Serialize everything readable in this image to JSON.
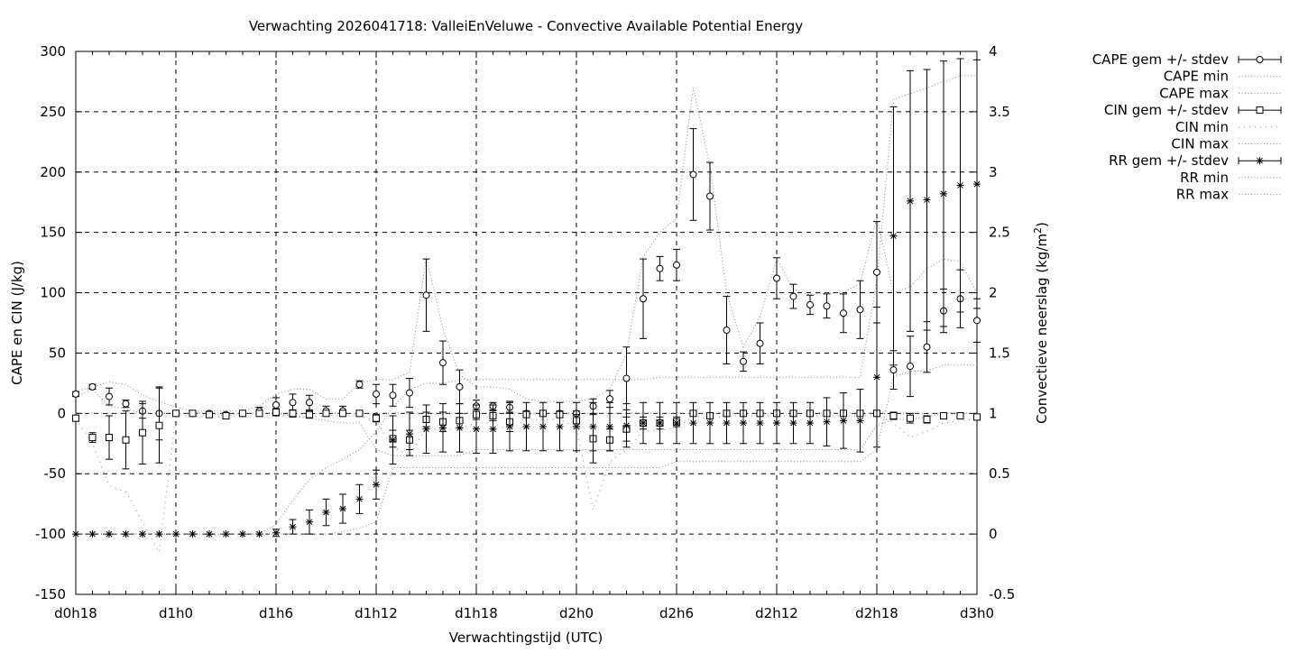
{
  "chart_data": {
    "type": "line",
    "title": "Verwachting 2026041718: ValleiEnVeluwe - Convective Available Potential Energy",
    "xlabel": "Verwachtingstijd (UTC)",
    "ylabel": "CAPE en CIN (J/kg)",
    "y2label_main": "Convectieve neerslag (kg/m",
    "y2label_sup": "2",
    "y2label_end": ")",
    "xlim": [
      0,
      54
    ],
    "ylim": [
      -150,
      300
    ],
    "y2lim": [
      -0.5,
      4
    ],
    "grid": true,
    "legend_position": "outside-top-right",
    "x_ticks": [
      {
        "x": 0,
        "label": "d0h18"
      },
      {
        "x": 6,
        "label": "d1h0"
      },
      {
        "x": 12,
        "label": "d1h6"
      },
      {
        "x": 18,
        "label": "d1h12"
      },
      {
        "x": 24,
        "label": "d1h18"
      },
      {
        "x": 30,
        "label": "d2h0"
      },
      {
        "x": 36,
        "label": "d2h6"
      },
      {
        "x": 42,
        "label": "d2h12"
      },
      {
        "x": 48,
        "label": "d2h18"
      },
      {
        "x": 54,
        "label": "d3h0"
      }
    ],
    "y_ticks": [
      300,
      250,
      200,
      150,
      100,
      50,
      0,
      -50,
      -100,
      -150
    ],
    "y_tick_labels": [
      "300",
      "250",
      "200",
      "150",
      "100",
      "50",
      "0",
      "-50",
      "-100",
      "-150"
    ],
    "y2_ticks": [
      4,
      3.5,
      3,
      2.5,
      2,
      1.5,
      1,
      0.5,
      0,
      -0.5
    ],
    "y2_tick_labels": [
      "4",
      "3.5",
      "3",
      "2.5",
      "2",
      "1.5",
      "1",
      "0.5",
      "0",
      "-0.5"
    ],
    "legend": [
      {
        "label": "CAPE gem +/- stdev",
        "style": "errbar",
        "marker": "circle"
      },
      {
        "label": "CAPE min",
        "style": "dotted"
      },
      {
        "label": "CAPE max",
        "style": "dotted"
      },
      {
        "label": "CIN gem +/- stdev",
        "style": "errbar",
        "marker": "square"
      },
      {
        "label": "CIN min",
        "style": "sparse"
      },
      {
        "label": "CIN max",
        "style": "dotted"
      },
      {
        "label": "RR gem +/- stdev",
        "style": "errbar",
        "marker": "star"
      },
      {
        "label": "RR min",
        "style": "dotted"
      },
      {
        "label": "RR max",
        "style": "dotted"
      }
    ],
    "series": [
      {
        "name": "CAPE gem +/- stdev",
        "axis": "y1",
        "marker": "circle",
        "x": [
          0,
          1,
          2,
          3,
          4,
          5,
          6,
          7,
          8,
          9,
          10,
          11,
          12,
          13,
          14,
          15,
          16,
          17,
          18,
          19,
          20,
          21,
          22,
          23,
          24,
          25,
          26,
          27,
          28,
          29,
          30,
          31,
          32,
          33,
          34,
          35,
          36,
          37,
          38,
          39,
          40,
          41,
          42,
          43,
          44,
          45,
          46,
          47,
          48,
          49,
          50,
          51,
          52,
          53,
          54
        ],
        "y": [
          16,
          22,
          14,
          8,
          2,
          0,
          0,
          0,
          0,
          -1,
          0,
          2,
          7,
          9,
          9,
          2,
          2,
          24,
          16,
          15,
          17,
          98,
          42,
          22,
          6,
          6,
          5,
          0,
          0,
          0,
          0,
          6,
          12,
          29,
          95,
          120,
          123,
          198,
          180,
          69,
          43,
          58,
          112,
          97,
          90,
          89,
          83,
          86,
          117,
          36,
          39,
          55,
          85,
          95,
          77
        ],
        "err": [
          2,
          2,
          7,
          3,
          6,
          22,
          1,
          1,
          1,
          1,
          1,
          3,
          6,
          7,
          6,
          4,
          4,
          3,
          8,
          9,
          12,
          30,
          18,
          14,
          5,
          3,
          5,
          2,
          2,
          2,
          2,
          6,
          7,
          26,
          33,
          10,
          13,
          38,
          28,
          28,
          8,
          17,
          17,
          10,
          8,
          10,
          16,
          24,
          42,
          16,
          25,
          21,
          18,
          24,
          18
        ]
      },
      {
        "name": "CIN gem +/- stdev",
        "axis": "y1",
        "marker": "square",
        "x": [
          0,
          1,
          2,
          3,
          4,
          5,
          6,
          7,
          8,
          9,
          10,
          11,
          12,
          13,
          14,
          15,
          16,
          17,
          18,
          19,
          20,
          21,
          22,
          23,
          24,
          25,
          26,
          27,
          28,
          29,
          30,
          31,
          32,
          33,
          34,
          35,
          36,
          37,
          38,
          39,
          40,
          41,
          42,
          43,
          44,
          45,
          46,
          47,
          48,
          49,
          50,
          51,
          52,
          53,
          54
        ],
        "y": [
          -4,
          -20,
          -20,
          -22,
          -16,
          -10,
          0,
          0,
          -1,
          -2,
          0,
          0,
          1,
          0,
          -1,
          0,
          0,
          0,
          -4,
          -21,
          -22,
          -5,
          -7,
          -6,
          -1,
          -2,
          -7,
          -1,
          0,
          -1,
          -6,
          -21,
          -22,
          -13,
          -8,
          -8,
          -7,
          0,
          -2,
          0,
          0,
          0,
          0,
          0,
          0,
          0,
          0,
          0,
          0,
          -2,
          -4,
          -5,
          -2,
          -2,
          -3
        ],
        "err": [
          1,
          4,
          18,
          24,
          26,
          31,
          1,
          1,
          1,
          1,
          1,
          1,
          3,
          3,
          3,
          2,
          2,
          1,
          3,
          7,
          8,
          6,
          8,
          6,
          4,
          4,
          8,
          2,
          2,
          2,
          5,
          20,
          9,
          10,
          5,
          5,
          4,
          1,
          2,
          1,
          1,
          1,
          1,
          1,
          1,
          1,
          1,
          1,
          1,
          3,
          4,
          3,
          1,
          1,
          1
        ]
      },
      {
        "name": "RR gem +/- stdev",
        "axis": "y2",
        "marker": "star",
        "x": [
          0,
          1,
          2,
          3,
          4,
          5,
          6,
          7,
          8,
          9,
          10,
          11,
          12,
          13,
          14,
          15,
          16,
          17,
          18,
          19,
          20,
          21,
          22,
          23,
          24,
          25,
          26,
          27,
          28,
          29,
          30,
          31,
          32,
          33,
          34,
          35,
          36,
          37,
          38,
          39,
          40,
          41,
          42,
          43,
          44,
          45,
          46,
          47,
          48,
          49,
          50,
          51,
          52,
          53,
          54
        ],
        "y": [
          0,
          0,
          0,
          0,
          0,
          0,
          0,
          0,
          0,
          0,
          0,
          0,
          0.01,
          0.06,
          0.1,
          0.18,
          0.21,
          0.29,
          0.41,
          0.78,
          0.83,
          0.87,
          0.88,
          0.88,
          0.87,
          0.87,
          0.89,
          0.89,
          0.89,
          0.89,
          0.89,
          0.89,
          0.89,
          0.9,
          0.92,
          0.92,
          0.92,
          0.92,
          0.92,
          0.92,
          0.92,
          0.92,
          0.92,
          0.92,
          0.92,
          0.93,
          0.94,
          0.94,
          1.3,
          2.47,
          2.76,
          2.77,
          2.82,
          2.89,
          2.9
        ],
        "err": [
          0,
          0,
          0,
          0,
          0,
          0,
          0,
          0,
          0,
          0,
          0,
          0,
          0.03,
          0.06,
          0.1,
          0.11,
          0.12,
          0.12,
          0.12,
          0.2,
          0.18,
          0.2,
          0.2,
          0.2,
          0.2,
          0.2,
          0.2,
          0.2,
          0.2,
          0.2,
          0.2,
          0.2,
          0.2,
          0.18,
          0.17,
          0.17,
          0.17,
          0.17,
          0.17,
          0.17,
          0.17,
          0.17,
          0.17,
          0.17,
          0.17,
          0.2,
          0.23,
          0.26,
          0.58,
          1.07,
          1.08,
          1.08,
          1.1,
          1.05,
          1.03
        ]
      },
      {
        "name": "CAPE max",
        "axis": "y1",
        "x": [
          0,
          1,
          2,
          3,
          4,
          5,
          6,
          7,
          8,
          9,
          10,
          11,
          12,
          13,
          14,
          15,
          16,
          17,
          18,
          19,
          20,
          21,
          22,
          23,
          24,
          25,
          26,
          27,
          28,
          29,
          30,
          31,
          32,
          33,
          34,
          35,
          36,
          37,
          38,
          39,
          40,
          41,
          42,
          43,
          44,
          45,
          46,
          47,
          48,
          49,
          50,
          51,
          52,
          53,
          54
        ],
        "y": [
          18,
          22,
          26,
          24,
          15,
          10,
          5,
          2,
          2,
          2,
          2,
          6,
          16,
          20,
          20,
          12,
          12,
          25,
          28,
          28,
          34,
          130,
          70,
          32,
          22,
          22,
          20,
          12,
          10,
          10,
          10,
          12,
          20,
          50,
          130,
          150,
          162,
          270,
          205,
          100,
          55,
          80,
          128,
          103,
          98,
          100,
          100,
          108,
          162,
          100,
          105,
          120,
          128,
          126,
          100
        ]
      },
      {
        "name": "CAPE min",
        "axis": "y1",
        "x": [
          0,
          1,
          2,
          3,
          4,
          5,
          6,
          7,
          8,
          9,
          10,
          11,
          12,
          13,
          14,
          15,
          16,
          17,
          18,
          19,
          20,
          21,
          22,
          23,
          24,
          25,
          26,
          27,
          28,
          29,
          30,
          31,
          32,
          33,
          34,
          35,
          36,
          37,
          38,
          39,
          40,
          41,
          42,
          43,
          44,
          45,
          46,
          47,
          48,
          49,
          50,
          51,
          52,
          53,
          54
        ],
        "y": [
          14,
          20,
          6,
          4,
          0,
          0,
          0,
          0,
          0,
          -2,
          0,
          0,
          0,
          -2,
          -4,
          -6,
          -8,
          -8,
          -30,
          -35,
          -35,
          -35,
          -35,
          -35,
          -30,
          -30,
          -30,
          -30,
          -30,
          -30,
          -30,
          -30,
          -30,
          -30,
          -30,
          -30,
          -30,
          -30,
          -30,
          -30,
          -30,
          -30,
          -30,
          -30,
          -30,
          -30,
          -30,
          -30,
          -10,
          -5,
          -5,
          -3,
          0,
          0,
          0
        ]
      },
      {
        "name": "CIN max",
        "axis": "y1",
        "x": [
          0,
          1,
          2,
          3,
          4,
          5,
          6,
          7,
          8,
          9,
          10,
          11,
          12,
          13,
          14,
          15,
          16,
          17,
          18,
          19,
          20,
          21,
          22,
          23,
          24,
          25,
          26,
          27,
          28,
          29,
          30,
          31,
          32,
          33,
          34,
          35,
          36,
          37,
          38,
          39,
          40,
          41,
          42,
          43,
          44,
          45,
          46,
          47,
          48,
          49,
          50,
          51,
          52,
          53,
          54
        ],
        "y": [
          0,
          0,
          0,
          0,
          0,
          0,
          0,
          0,
          0,
          0,
          0,
          0,
          0,
          0,
          0,
          0,
          0,
          0,
          0,
          0,
          0,
          0,
          0,
          0,
          0,
          0,
          0,
          0,
          0,
          0,
          0,
          0,
          0,
          0,
          0,
          0,
          0,
          0,
          0,
          0,
          0,
          0,
          0,
          0,
          0,
          0,
          0,
          0,
          0,
          0,
          0,
          0,
          0,
          0,
          0
        ]
      },
      {
        "name": "CIN min",
        "axis": "y1",
        "x": [
          0,
          1,
          2,
          3,
          4,
          5,
          6,
          7,
          8,
          9,
          10,
          11,
          12,
          13,
          14,
          15,
          16,
          17,
          18,
          19,
          20,
          21,
          22,
          23,
          24,
          25,
          26,
          27,
          28,
          29,
          30,
          31,
          32,
          33,
          34,
          35,
          36,
          37,
          38,
          39,
          40,
          41,
          42,
          43,
          44,
          45,
          46,
          47,
          48,
          49,
          50,
          51,
          52,
          53,
          54
        ],
        "y": [
          -5,
          -25,
          -60,
          -65,
          -90,
          -115,
          -2,
          -2,
          -3,
          -3,
          -2,
          -2,
          -2,
          -2,
          -3,
          -2,
          -2,
          -2,
          -6,
          -28,
          -35,
          -12,
          -14,
          -12,
          -8,
          -8,
          -14,
          -5,
          -5,
          -5,
          -12,
          -80,
          -40,
          -30,
          -15,
          -14,
          -12,
          -2,
          -5,
          -2,
          -2,
          -2,
          -2,
          -2,
          -2,
          -2,
          -2,
          -2,
          -2,
          -8,
          -20,
          -15,
          -8,
          -6,
          -5
        ]
      },
      {
        "name": "RR max",
        "axis": "y2",
        "x": [
          0,
          1,
          2,
          3,
          4,
          5,
          6,
          7,
          8,
          9,
          10,
          11,
          12,
          13,
          14,
          15,
          16,
          17,
          18,
          19,
          20,
          21,
          22,
          23,
          24,
          25,
          26,
          27,
          28,
          29,
          30,
          31,
          32,
          33,
          34,
          35,
          36,
          37,
          38,
          39,
          40,
          41,
          42,
          43,
          44,
          45,
          46,
          47,
          48,
          49,
          50,
          51,
          52,
          53,
          54
        ],
        "y": [
          0,
          0,
          0,
          0,
          0,
          0,
          0,
          0,
          0,
          0,
          0,
          0,
          0.08,
          0.28,
          0.45,
          0.55,
          0.62,
          0.7,
          0.85,
          1.05,
          1.2,
          1.25,
          1.25,
          1.28,
          1.28,
          1.28,
          1.28,
          1.28,
          1.28,
          1.28,
          1.28,
          1.28,
          1.28,
          1.28,
          1.28,
          1.3,
          1.3,
          1.3,
          1.3,
          1.3,
          1.3,
          1.3,
          1.3,
          1.3,
          1.3,
          1.3,
          1.3,
          1.3,
          2.1,
          3.6,
          3.65,
          3.7,
          3.75,
          3.8,
          3.8
        ]
      },
      {
        "name": "RR min",
        "axis": "y2",
        "x": [
          0,
          1,
          2,
          3,
          4,
          5,
          6,
          7,
          8,
          9,
          10,
          11,
          12,
          13,
          14,
          15,
          16,
          17,
          18,
          19,
          20,
          21,
          22,
          23,
          24,
          25,
          26,
          27,
          28,
          29,
          30,
          31,
          32,
          33,
          34,
          35,
          36,
          37,
          38,
          39,
          40,
          41,
          42,
          43,
          44,
          45,
          46,
          47,
          48,
          49,
          50,
          51,
          52,
          53,
          54
        ],
        "y": [
          0,
          0,
          0,
          0,
          0,
          0,
          0,
          0,
          0,
          0,
          0,
          0,
          0,
          0,
          0,
          0,
          0.02,
          0.05,
          0.1,
          0.55,
          0.55,
          0.55,
          0.55,
          0.55,
          0.55,
          0.55,
          0.55,
          0.55,
          0.55,
          0.55,
          0.55,
          0.55,
          0.55,
          0.55,
          0.55,
          0.55,
          0.6,
          0.6,
          0.6,
          0.6,
          0.6,
          0.6,
          0.6,
          0.6,
          0.6,
          0.6,
          0.6,
          0.6,
          0.7,
          1.3,
          1.35,
          1.35,
          1.4,
          1.4,
          1.4
        ]
      }
    ]
  }
}
